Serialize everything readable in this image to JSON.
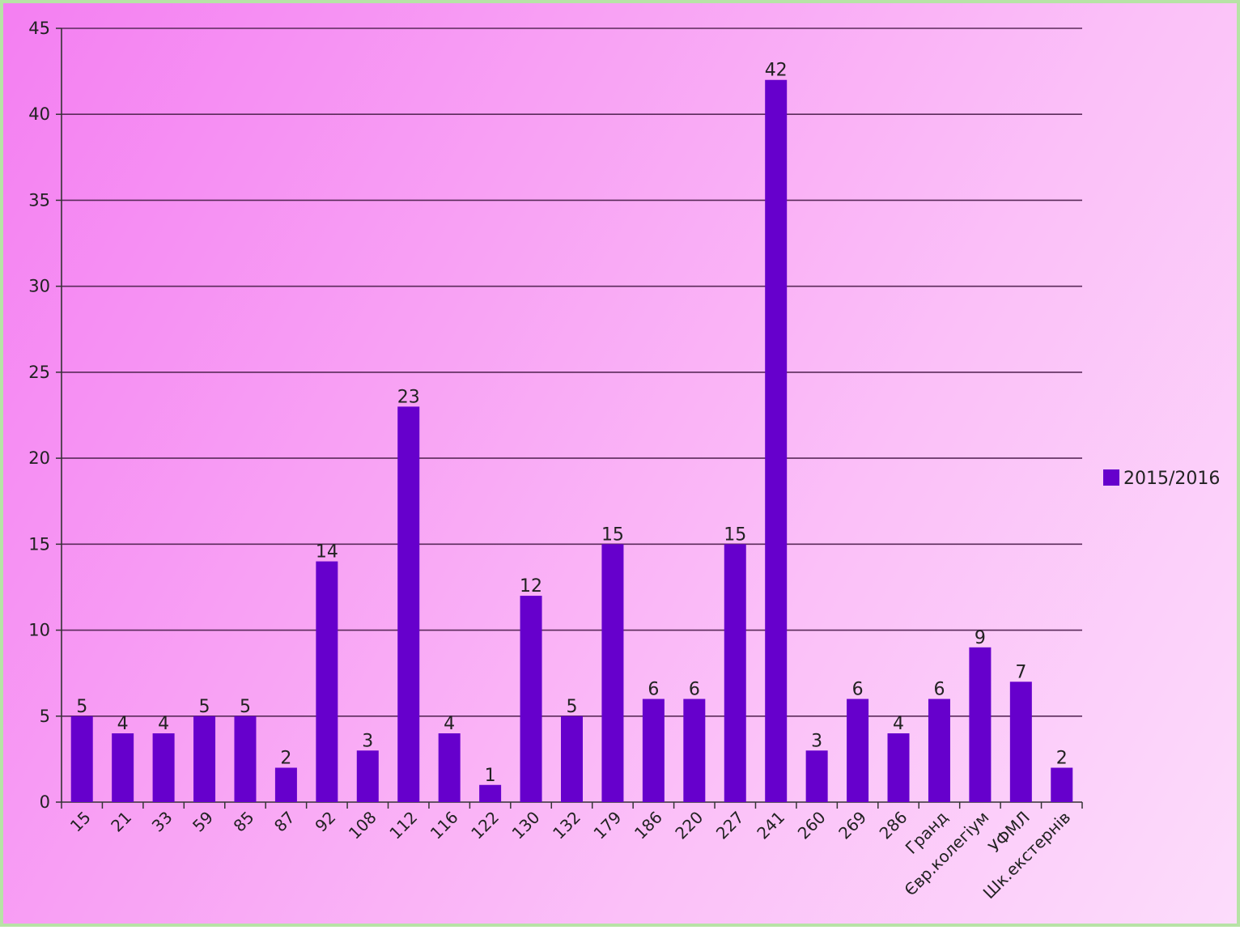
{
  "chart_data": {
    "type": "bar",
    "categories": [
      "15",
      "21",
      "33",
      "59",
      "85",
      "87",
      "92",
      "108",
      "112",
      "116",
      "122",
      "130",
      "132",
      "179",
      "186",
      "220",
      "227",
      "241",
      "260",
      "269",
      "286",
      "Гранд",
      "Євр.колегіум",
      "УФМЛ",
      "Шк.екстернів"
    ],
    "series": [
      {
        "name": "2015/2016",
        "color": "#6600cc",
        "values": [
          5,
          4,
          4,
          5,
          5,
          2,
          14,
          3,
          23,
          4,
          1,
          12,
          5,
          15,
          6,
          6,
          15,
          42,
          3,
          6,
          4,
          6,
          9,
          7,
          2
        ]
      }
    ],
    "ylim": [
      0,
      45
    ],
    "yticks": [
      0,
      5,
      10,
      15,
      20,
      25,
      30,
      35,
      40,
      45
    ],
    "grid": true,
    "legend": "right",
    "data_labels": true
  }
}
